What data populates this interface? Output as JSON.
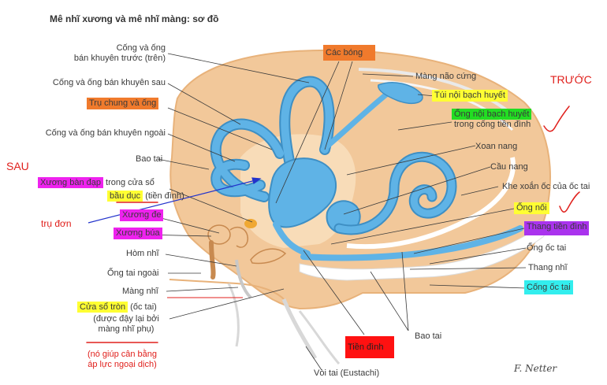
{
  "title": "Mê nhĩ xương và mê nhĩ màng: sơ đồ",
  "labels": {
    "cong_ong_truoc_1": "Cống và ống",
    "cong_ong_truoc_2": "bán khuyên trước (trên)",
    "cong_ong_sau": "Cống và ống bán khuyên sau",
    "tru_chung": "Trụ chung và ống",
    "cong_ong_ngoai": "Cống và ống bán khuyên ngoài",
    "bao_tai_left": "Bao tai",
    "xuong_ban_dap": "Xương bàn đạp",
    "trong_cua_so": " trong cửa sổ",
    "bau_duc": "bầu dục",
    "tien_dinh_paren": " (tiền đình)",
    "xuong_de": "Xương đe",
    "xuong_bua": "Xương búa",
    "hom_nhi": "Hòm nhĩ",
    "ong_tai_ngoai": "Ống tai ngoài",
    "mang_nhi": "Màng nhĩ",
    "cua_so_tron": "Cửa sổ tròn",
    "oc_tai_paren": " (ốc tai)",
    "duoc_day_1": "(được đậy lại bởi",
    "duoc_day_2": "màng nhĩ phụ)",
    "note_1": "(nó giúp cân bằng",
    "note_2": "áp lực ngoại dịch)",
    "cac_bong": "Các bóng",
    "mang_nao_cung": "Màng não cứng",
    "tui_noi_bach_huyet": "Túi nội bạch huyết",
    "ong_noi_bach_huyet": "Ống nội bạch huyết",
    "trong_cong_tien_dinh": "trong cống tiền đình",
    "xoan_nang": "Xoan nang",
    "cau_nang": "Cầu nang",
    "khe_xoan": "Khe xoắn ốc của ốc tai",
    "ong_noi": "Ống nối",
    "thang_tien_dinh": "Thang tiền đình",
    "ong_oc_tai": "Ống ốc tai",
    "thang_nhi": "Thang nhĩ",
    "cong_oc_tai": "Cống ốc tai",
    "bao_tai_bottom": "Bao tai",
    "tien_dinh_box": "Tiền đình",
    "voi_tai": "Vòi tai (Eustachi)",
    "sau": "SAU",
    "truoc": "TRƯỚC",
    "tru_don": "trụ đơn",
    "signature": "F. Netter"
  },
  "colors": {
    "bone": "#f2c89a",
    "bone_edge": "#e8b27a",
    "duct": "#5fb3e6",
    "duct_edge": "#3e8fc4",
    "orange_box": "#f07a2c",
    "yellow_box": "#ffff33",
    "magenta_box": "#ee22ee",
    "green_box": "#22dd22",
    "purple_box": "#aa33ee",
    "cyan_box": "#33eeee",
    "red_box": "#ff1111",
    "annotation_red": "#e0201c",
    "arrow_blue": "#2233cc"
  }
}
